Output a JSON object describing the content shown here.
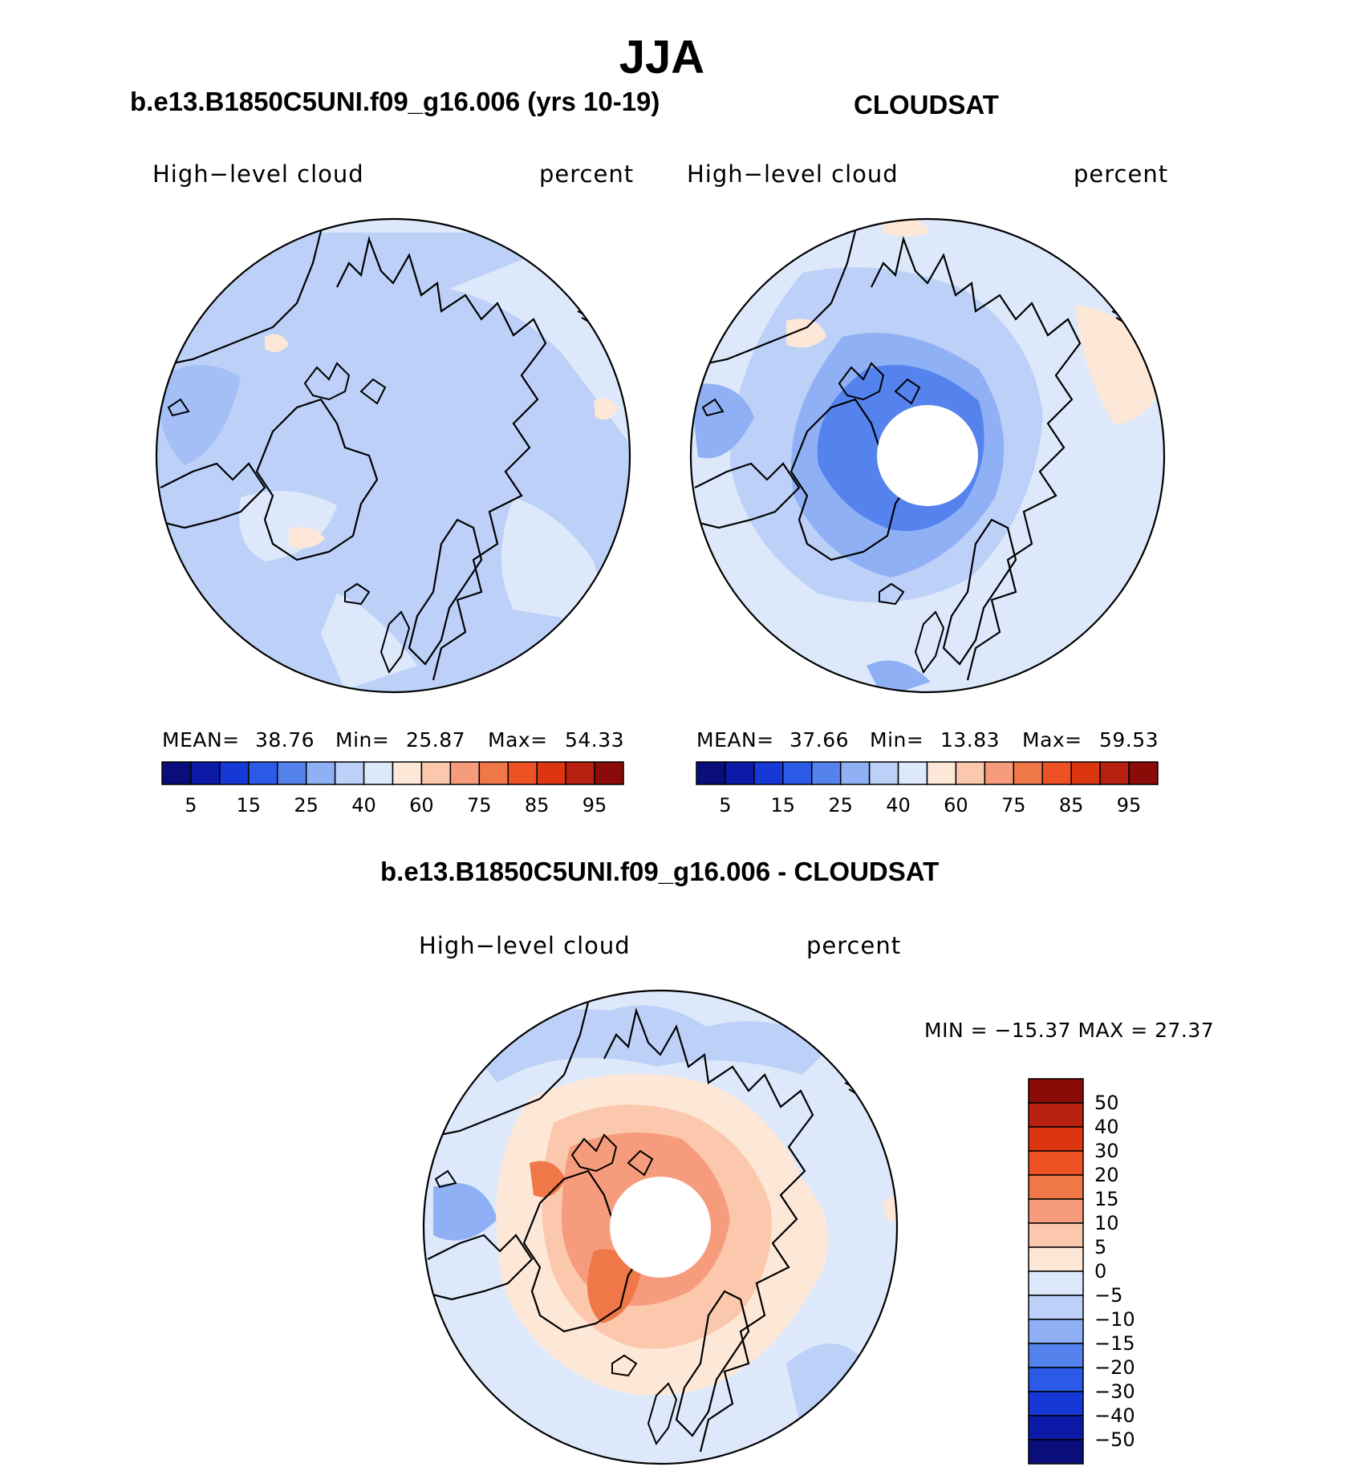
{
  "title": "JJA",
  "panels": {
    "model": {
      "title": "b.e13.B1850C5UNI.f09_g16.006 (yrs 10-19)",
      "variable": "High−level cloud",
      "units": "percent",
      "stats": {
        "mean_label": "MEAN=",
        "mean": "38.76",
        "min_label": "Min=",
        "min": "25.87",
        "max_label": "Max=",
        "max": "54.33"
      }
    },
    "obs": {
      "title": "CLOUDSAT",
      "variable": "High−level cloud",
      "units": "percent",
      "stats": {
        "mean_label": "MEAN=",
        "mean": "37.66",
        "min_label": "Min=",
        "min": "13.83",
        "max_label": "Max=",
        "max": "59.53"
      }
    },
    "diff": {
      "title": "b.e13.B1850C5UNI.f09_g16.006 - CLOUDSAT",
      "variable": "High−level cloud",
      "units": "percent",
      "minmax": "MIN = −15.37 MAX =   27.37"
    }
  },
  "colorbar": {
    "tick_labels": [
      "5",
      "15",
      "25",
      "40",
      "60",
      "75",
      "85",
      "95"
    ],
    "colors": [
      "#0a0e7a",
      "#0c1aa8",
      "#1538d6",
      "#2a5ae6",
      "#5583ee",
      "#8fb0f4",
      "#bcd0f8",
      "#dde9fb",
      "#fde8d8",
      "#fbc8ad",
      "#f69c7d",
      "#f07748",
      "#ee5224",
      "#dc3610",
      "#b82010",
      "#8a0b08"
    ]
  },
  "diff_colorbar": {
    "labels": [
      "50",
      "40",
      "30",
      "20",
      "15",
      "10",
      "5",
      "0",
      "−5",
      "−10",
      "−15",
      "−20",
      "−30",
      "−40",
      "−50"
    ],
    "colors": [
      "#8a0b08",
      "#b82010",
      "#dc3610",
      "#ee5224",
      "#f07748",
      "#f69c7d",
      "#fbc8ad",
      "#fde8d8",
      "#dde9fb",
      "#bcd0f8",
      "#8fb0f4",
      "#5583ee",
      "#2a5ae6",
      "#1538d6",
      "#0c1aa8",
      "#0a0e7a"
    ]
  },
  "chart_data": [
    {
      "type": "heatmap",
      "title": "b.e13.B1850C5UNI.f09_g16.006 (yrs 10-19)",
      "field": "High-level cloud",
      "units": "percent",
      "season": "JJA",
      "mean": 38.76,
      "min": 25.87,
      "max": 54.33,
      "contour_levels": [
        5,
        10,
        15,
        20,
        25,
        30,
        40,
        50,
        60,
        70,
        75,
        80,
        85,
        90,
        95
      ]
    },
    {
      "type": "heatmap",
      "title": "CLOUDSAT",
      "field": "High-level cloud",
      "units": "percent",
      "season": "JJA",
      "mean": 37.66,
      "min": 13.83,
      "max": 59.53,
      "contour_levels": [
        5,
        10,
        15,
        20,
        25,
        30,
        40,
        50,
        60,
        70,
        75,
        80,
        85,
        90,
        95
      ]
    },
    {
      "type": "heatmap",
      "title": "b.e13.B1850C5UNI.f09_g16.006 - CLOUDSAT",
      "field": "High-level cloud",
      "units": "percent",
      "season": "JJA",
      "min": -15.37,
      "max": 27.37,
      "contour_levels": [
        -50,
        -40,
        -30,
        -20,
        -15,
        -10,
        -5,
        0,
        5,
        10,
        15,
        20,
        30,
        40,
        50
      ]
    }
  ]
}
